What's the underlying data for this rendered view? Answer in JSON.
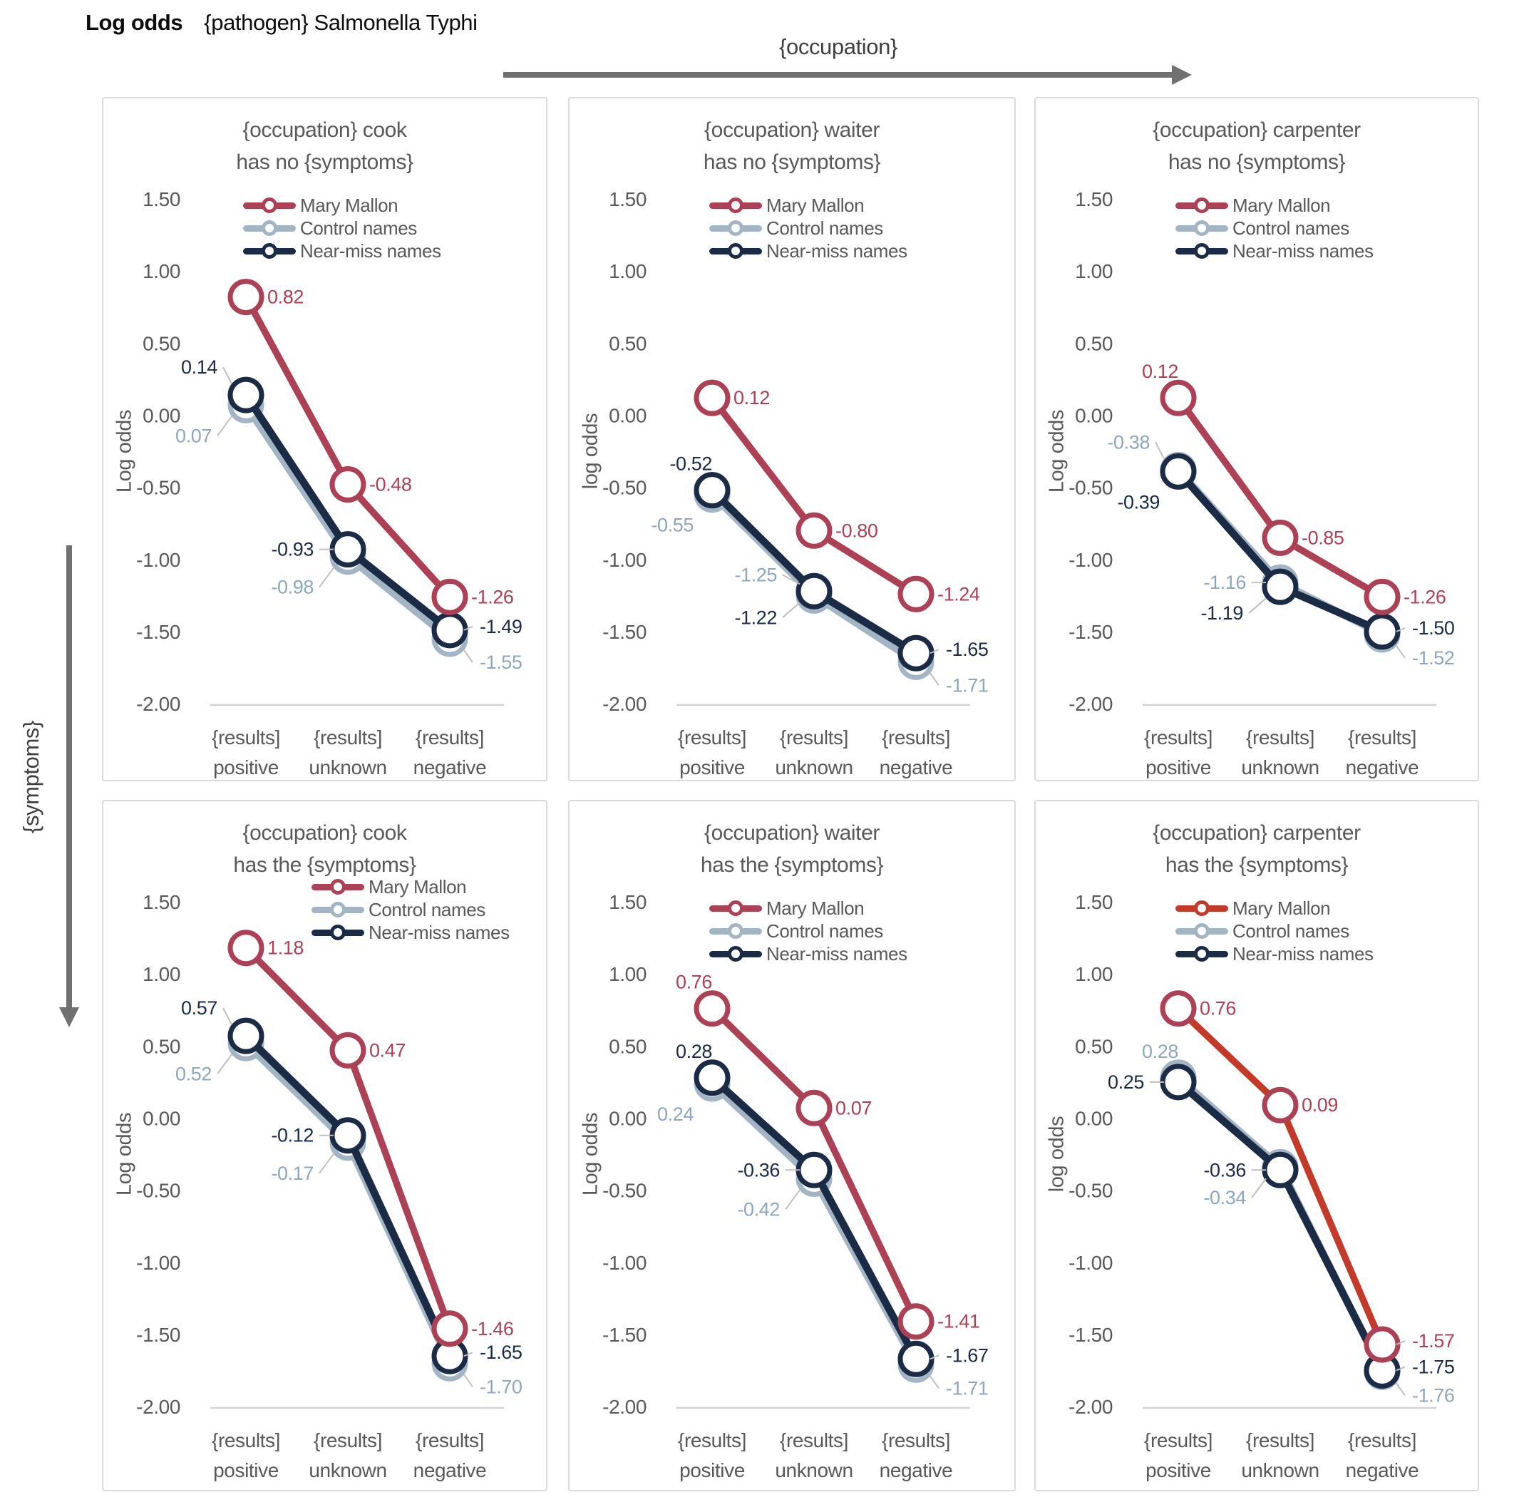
{
  "header": {
    "title_bold": "Log odds",
    "title_rest": "{pathogen} Salmonella Typhi"
  },
  "grid_arrows": {
    "occupation_label": "{occupation}",
    "symptoms_label": "{symptoms}"
  },
  "colors": {
    "mary_mallon": "#AC4156",
    "mary_mallon_alt_line": "#C33B28",
    "control_names": "#A3B4C4",
    "control_label": "#8FA6BF",
    "near_miss": "#1B2B45",
    "tick_text": "#595959",
    "leader_line": "#BFBFBF",
    "axis_line": "#D3D3D3",
    "panel_border": "#DADADA",
    "arrow_gray": "#707070"
  },
  "chart_data": {
    "type": "line",
    "categories": [
      "{results] positive",
      "{results] unknown",
      "{results] negative"
    ],
    "x_tick_line1": [
      "{results]",
      "{results]",
      "{results]"
    ],
    "x_tick_line2": [
      "positive",
      "unknown",
      "negative"
    ],
    "ylim": [
      -2.0,
      1.5
    ],
    "y_ticks": [
      {
        "label": "1.50",
        "v": 1.5
      },
      {
        "label": "1.00",
        "v": 1.0
      },
      {
        "label": "0.50",
        "v": 0.5
      },
      {
        "label": "0.00",
        "v": 0.0
      },
      {
        "label": "-0.50",
        "v": -0.5
      },
      {
        "label": "-1.00",
        "v": -1.0
      },
      {
        "label": "-1.50",
        "v": -1.5
      },
      {
        "label": "-2.00",
        "v": -2.0
      }
    ],
    "grid": "off (baseline only at -2.00)",
    "legend_position": "inside top, below title",
    "charts": [
      {
        "title_line1": "{occupation} cook",
        "title_line2": "has no {symptoms}",
        "ylabel": "Log odds",
        "series": [
          {
            "name": "Mary Mallon",
            "color": "#AC4156",
            "values": [
              0.82,
              -0.48,
              -1.26
            ],
            "point_labels": [
              "0.82",
              "-0.48",
              "-1.26"
            ],
            "label_pos": [
              "r",
              "r",
              "r"
            ]
          },
          {
            "name": "Control names",
            "color": "#A3B4C4",
            "label_color": "#8FA6BF",
            "values": [
              0.07,
              -0.98,
              -1.55
            ],
            "point_labels": [
              "0.07",
              "-0.98",
              "-1.55"
            ],
            "label_pos": [
              "bll",
              "bll",
              "rlo"
            ]
          },
          {
            "name": "Near-miss names",
            "color": "#1B2B45",
            "values": [
              0.14,
              -0.93,
              -1.49
            ],
            "point_labels": [
              "0.14",
              "-0.93",
              "-1.49"
            ],
            "label_pos": [
              "al",
              "ll",
              "rl"
            ]
          }
        ]
      },
      {
        "title_line1": "{occupation} waiter",
        "title_line2": "has no {symptoms}",
        "ylabel": "log odds",
        "series": [
          {
            "name": "Mary Mallon",
            "color": "#AC4156",
            "values": [
              0.12,
              -0.8,
              -1.24
            ],
            "point_labels": [
              "0.12",
              "-0.80",
              "-1.24"
            ],
            "label_pos": [
              "r",
              "r",
              "r"
            ]
          },
          {
            "name": "Control names",
            "color": "#A3B4C4",
            "label_color": "#8FA6BF",
            "values": [
              -0.55,
              -1.25,
              -1.71
            ],
            "point_labels": [
              "-0.55",
              "-1.25",
              "-1.71"
            ],
            "label_pos": [
              "bl",
              "lhi",
              "rlo"
            ]
          },
          {
            "name": "Near-miss names",
            "color": "#1B2B45",
            "values": [
              -0.52,
              -1.22,
              -1.65
            ],
            "point_labels": [
              "-0.52",
              "-1.22",
              "-1.65"
            ],
            "label_pos": [
              "a",
              "llo",
              "rl"
            ]
          }
        ]
      },
      {
        "title_line1": "{occupation} carpenter",
        "title_line2": "has no {symptoms}",
        "ylabel": "Log odds",
        "series": [
          {
            "name": "Mary Mallon",
            "color": "#AC4156",
            "values": [
              0.12,
              -0.85,
              -1.26
            ],
            "point_labels": [
              "0.12",
              "-0.85",
              "-1.26"
            ],
            "label_pos": [
              "a",
              "r",
              "r"
            ]
          },
          {
            "name": "Control names",
            "color": "#A3B4C4",
            "label_color": "#8FA6BF",
            "values": [
              -0.38,
              -1.16,
              -1.52
            ],
            "point_labels": [
              "-0.38",
              "-1.16",
              "-1.52"
            ],
            "label_pos": [
              "al",
              "ll",
              "rlo"
            ]
          },
          {
            "name": "Near-miss names",
            "color": "#1B2B45",
            "values": [
              -0.39,
              -1.19,
              -1.5
            ],
            "point_labels": [
              "-0.39",
              "-1.19",
              "-1.50"
            ],
            "label_pos": [
              "bl",
              "llo",
              "rl"
            ]
          }
        ]
      },
      {
        "title_line1": "{occupation} cook",
        "title_line2": "has the {symptoms}",
        "ylabel": "Log odds",
        "series": [
          {
            "name": "Mary Mallon",
            "color": "#AC4156",
            "values": [
              1.18,
              0.47,
              -1.46
            ],
            "point_labels": [
              "1.18",
              "0.47",
              "-1.46"
            ],
            "label_pos": [
              "r",
              "r",
              "r"
            ]
          },
          {
            "name": "Control names",
            "color": "#A3B4C4",
            "label_color": "#8FA6BF",
            "values": [
              0.52,
              -0.17,
              -1.7
            ],
            "point_labels": [
              "0.52",
              "-0.17",
              "-1.70"
            ],
            "label_pos": [
              "bll",
              "bll",
              "rlo"
            ]
          },
          {
            "name": "Near-miss names",
            "color": "#1B2B45",
            "values": [
              0.57,
              -0.12,
              -1.65
            ],
            "point_labels": [
              "0.57",
              "-0.12",
              "-1.65"
            ],
            "label_pos": [
              "al",
              "ll",
              "rl"
            ]
          }
        ]
      },
      {
        "title_line1": "{occupation} waiter",
        "title_line2": "has the {symptoms}",
        "ylabel": "Log odds",
        "series": [
          {
            "name": "Mary Mallon",
            "color": "#AC4156",
            "values": [
              0.76,
              0.07,
              -1.41
            ],
            "point_labels": [
              "0.76",
              "0.07",
              "-1.41"
            ],
            "label_pos": [
              "a",
              "r",
              "r"
            ]
          },
          {
            "name": "Control names",
            "color": "#A3B4C4",
            "label_color": "#8FA6BF",
            "values": [
              0.24,
              -0.42,
              -1.71
            ],
            "point_labels": [
              "0.24",
              "-0.42",
              "-1.71"
            ],
            "label_pos": [
              "bl",
              "bll",
              "rlo"
            ]
          },
          {
            "name": "Near-miss names",
            "color": "#1B2B45",
            "values": [
              0.28,
              -0.36,
              -1.67
            ],
            "point_labels": [
              "0.28",
              "-0.36",
              "-1.67"
            ],
            "label_pos": [
              "a",
              "ll",
              "rl"
            ]
          }
        ]
      },
      {
        "title_line1": "{occupation} carpenter",
        "title_line2": "has the {symptoms}",
        "ylabel": "log odds",
        "series": [
          {
            "name": "Mary Mallon",
            "color": "#AC4156",
            "line_color": "#C33B28",
            "values": [
              0.76,
              0.09,
              -1.57
            ],
            "point_labels": [
              "0.76",
              "0.09",
              "-1.57"
            ],
            "label_pos": [
              "r",
              "r",
              "rl"
            ]
          },
          {
            "name": "Control names",
            "color": "#A3B4C4",
            "label_color": "#8FA6BF",
            "values": [
              0.28,
              -0.34,
              -1.76
            ],
            "point_labels": [
              "0.28",
              "-0.34",
              "-1.76"
            ],
            "label_pos": [
              "a",
              "bll",
              "rlo"
            ]
          },
          {
            "name": "Near-miss names",
            "color": "#1B2B45",
            "values": [
              0.25,
              -0.36,
              -1.75
            ],
            "point_labels": [
              "0.25",
              "-0.36",
              "-1.75"
            ],
            "label_pos": [
              "ll",
              "ll",
              "rl"
            ]
          }
        ]
      }
    ]
  }
}
